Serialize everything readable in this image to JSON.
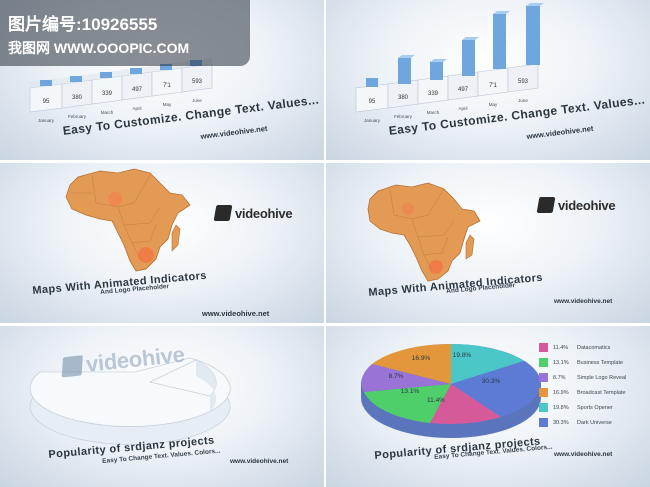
{
  "watermark": {
    "line1": "图片编号:10926555",
    "line2": "我图网 WWW.OOOPIC.COM"
  },
  "panel1": {
    "months": [
      "January",
      "February",
      "March",
      "April",
      "May",
      "June"
    ],
    "values": [
      "95",
      "380",
      "339",
      "497",
      "7'1",
      "593"
    ],
    "heading": "Easy To Customize. Change Text. Values...",
    "url": "www.videohive.net"
  },
  "panel2": {
    "months": [
      "January",
      "February",
      "March",
      "April",
      "May",
      "June"
    ],
    "values": [
      "95",
      "380",
      "339",
      "497",
      "7'1",
      "593"
    ],
    "heading": "Easy To Customize. Change Text. Values...",
    "url": "www.videohive.net"
  },
  "panel3": {
    "logo": "videohive",
    "heading": "Maps With Animated Indicators",
    "sub": "And Logo Placeholder",
    "url": "www.videohive.net"
  },
  "panel4": {
    "logo": "videohive",
    "heading": "Maps With Animated Indicators",
    "sub": "And Logo Placeholder",
    "url": "www.videohive.net"
  },
  "panel5": {
    "logo": "videohive",
    "heading": "Popularity of srdjanz projects",
    "sub": "Easy To Change Text. Values. Colors...",
    "url": "www.videohive.net"
  },
  "panel6": {
    "heading": "Popularity of srdjanz projects",
    "sub": "Easy To Change Text. Values. Colors...",
    "url": "www.videohive.net",
    "slice_labels": [
      "19.8%",
      "30.3%",
      "11.4%",
      "13.1%",
      "8.7%",
      "16.9%"
    ],
    "legend": [
      {
        "pct": "11.4%",
        "label": "Datacomatics",
        "color": "#d65a9a"
      },
      {
        "pct": "13.1%",
        "label": "Business Template",
        "color": "#4fcf6a"
      },
      {
        "pct": "8.7%",
        "label": "Simple Logo Reveal",
        "color": "#9a73d6"
      },
      {
        "pct": "16.9%",
        "label": "Broadcast Template",
        "color": "#e3973a"
      },
      {
        "pct": "19.8%",
        "label": "Sports Opener",
        "color": "#4bc7c7"
      },
      {
        "pct": "30.3%",
        "label": "Dark Universe",
        "color": "#5d7bd4"
      }
    ]
  }
}
